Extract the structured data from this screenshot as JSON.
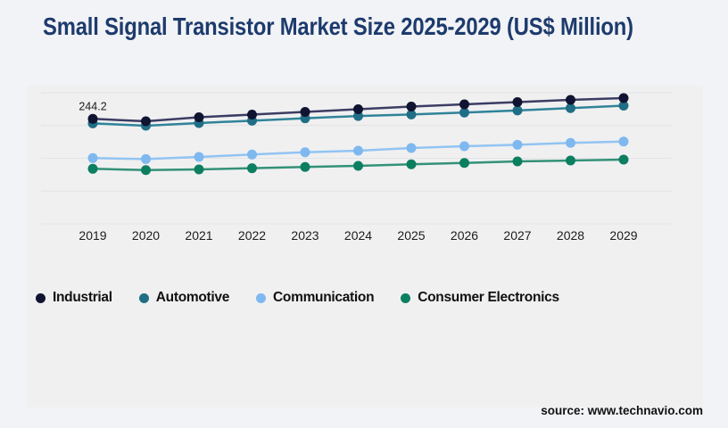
{
  "page": {
    "background": "#f2f3f7",
    "panel_background": "#f0f0f1",
    "gridline_color": "#e2e3e6"
  },
  "title": {
    "text": "Small Signal Transistor Market Size 2025-2029 (US$ Million)",
    "color": "#1d3b6c"
  },
  "source": {
    "text": "source: www.technavio.com"
  },
  "chart_data": {
    "type": "line",
    "title": "Small Signal Transistor Market Size 2025-2029 (US$ Million)",
    "xlabel": "",
    "ylabel": "",
    "x": [
      "2019",
      "2020",
      "2021",
      "2022",
      "2023",
      "2024",
      "2025",
      "2026",
      "2027",
      "2028",
      "2029"
    ],
    "series": [
      {
        "name": "Industrial",
        "color": "#101431",
        "line_color": "#3c3c64",
        "values": [
          244.2,
          238.6,
          247.9,
          254.2,
          260.4,
          266.6,
          272.8,
          278.0,
          283.2,
          288.4,
          292.5
        ]
      },
      {
        "name": "Automotive",
        "color": "#206e85",
        "line_color": "#2f8399",
        "values": [
          233.8,
          228.2,
          234.5,
          240.0,
          245.5,
          250.9,
          254.4,
          258.9,
          263.7,
          269.3,
          274.9
        ]
      },
      {
        "name": "Communication",
        "color": "#7eb8ef",
        "line_color": "#92c4f2",
        "values": [
          152.9,
          150.8,
          155.6,
          161.2,
          166.6,
          170.1,
          176.4,
          180.5,
          184.0,
          188.2,
          191.5
        ]
      },
      {
        "name": "Consumer Electronics",
        "color": "#0c7f61",
        "line_color": "#339178",
        "values": [
          128.0,
          125.1,
          126.6,
          129.3,
          132.2,
          134.9,
          138.4,
          141.7,
          145.2,
          147.3,
          149.4
        ]
      }
    ],
    "annotation": {
      "series": "Industrial",
      "x": "2019",
      "label": "244.2"
    },
    "ylim": [
      0,
      305
    ],
    "grid": true,
    "gridline_count": 5,
    "legend_position": "bottom"
  }
}
